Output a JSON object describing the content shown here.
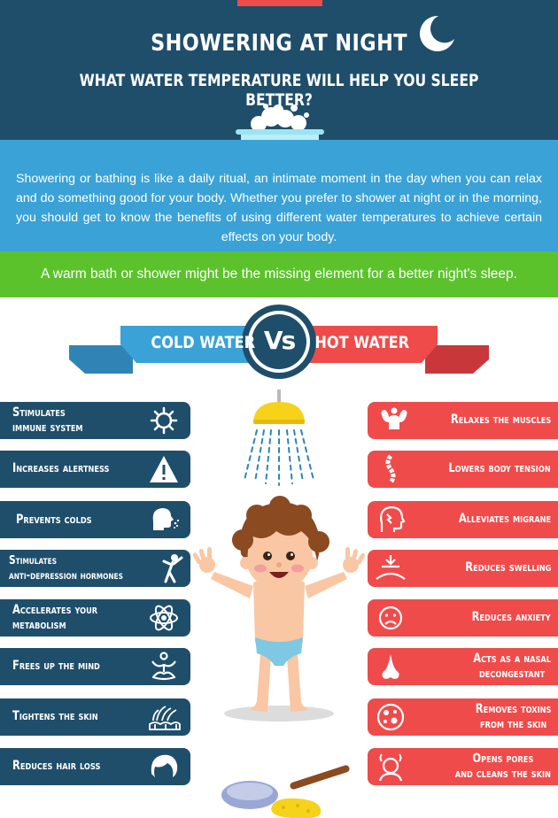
{
  "header": {
    "title": "SHOWERING AT NIGHT",
    "subtitle": "WHAT WATER TEMPERATURE WILL HELP YOU SLEEP BETTER?"
  },
  "intro": {
    "text": "Showering or bathing is like a daily ritual, an intimate moment in the day when you can relax and do something good for your body. Whether you prefer to shower at night or in the morning, you should get to know the benefits of using different water temperatures to achieve certain effects on your body."
  },
  "highlight": {
    "text": "A warm bath or shower might be the missing element for a better night's sleep."
  },
  "versus": {
    "cold_label": "COLD WATER",
    "vs_label": "Vs",
    "hot_label": "HOT WATER"
  },
  "cold_benefits": [
    {
      "label": "Stimulates\nimmune system",
      "icon": "virus-icon"
    },
    {
      "label": "Increases alertness",
      "icon": "warning-icon"
    },
    {
      "label": "Prevents colds",
      "icon": "sneeze-icon"
    },
    {
      "label": "Stimulates\nanti-depression hormones",
      "icon": "happy-person-icon"
    },
    {
      "label": "Accelerates your\nmetabolism",
      "icon": "atom-icon"
    },
    {
      "label": "Frees up the mind",
      "icon": "meditation-icon"
    },
    {
      "label": "Tightens the skin",
      "icon": "skin-hair-icon"
    },
    {
      "label": "Reduces hair loss",
      "icon": "hair-icon"
    }
  ],
  "hot_benefits": [
    {
      "label": "Relaxes the muscles",
      "icon": "muscle-icon"
    },
    {
      "label": "Lowers body tension",
      "icon": "spine-icon"
    },
    {
      "label": "Alleviates migrane",
      "icon": "head-pain-icon"
    },
    {
      "label": "Reduces swelling",
      "icon": "swelling-icon"
    },
    {
      "label": "Reduces anxiety",
      "icon": "sad-face-icon"
    },
    {
      "label": "Acts as a nasal\ndecongestant",
      "icon": "nose-icon"
    },
    {
      "label": "Removes toxins\nfrom the skin",
      "icon": "toxin-icon"
    },
    {
      "label": "Opens pores\nand cleans the skin",
      "icon": "face-steam-icon"
    }
  ],
  "colors": {
    "navy": "#1f4e6b",
    "blue": "#3aa2d6",
    "green": "#5cc22c",
    "red": "#ef4b4b",
    "yellow": "#f6d21b"
  }
}
